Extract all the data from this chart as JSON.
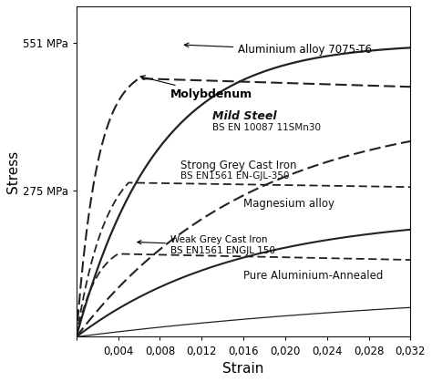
{
  "xlabel": "Strain",
  "ylabel": "Stress",
  "xlim": [
    0,
    0.032
  ],
  "ylim": [
    0,
    620
  ],
  "xticks": [
    0,
    0.004,
    0.008,
    0.012,
    0.016,
    0.02,
    0.024,
    0.028,
    0.032
  ],
  "xtick_labels": [
    "",
    "0,004",
    "0,008",
    "0,012",
    "0,016",
    "0,020",
    "0,024",
    "0,028",
    "0,032"
  ],
  "ytick_551": 551,
  "ytick_275": 275,
  "background_color": "#ffffff",
  "curves": {
    "aluminium_7075": {
      "sigma_max": 551,
      "k": 130,
      "style": "solid",
      "lw": 1.6
    },
    "molybdenum": {
      "sigma_max": 510,
      "k": 500,
      "drop_after": 0.006,
      "style": "dashed",
      "lw": 1.5
    },
    "mild_steel": {
      "sigma_max": 430,
      "k": 60,
      "style": "dashed",
      "lw": 1.5
    },
    "strong_grey_cast_iron": {
      "sigma_max": 345,
      "k": 300,
      "style": "dashed",
      "lw": 1.3
    },
    "magnesium_alloy": {
      "sigma_max": 230,
      "k": 65,
      "style": "solid",
      "lw": 1.5
    },
    "weak_grey_cast_iron": {
      "sigma_max": 175,
      "k": 400,
      "style": "dashed",
      "lw": 1.3
    },
    "pure_aluminium": {
      "sigma_max": 100,
      "k": 25,
      "style": "solid",
      "lw": 0.9
    }
  },
  "fontsize_label": 9,
  "fontsize_tick": 8.5,
  "fontsize_annotation": 8.5,
  "fontsize_annotation_small": 7.5
}
